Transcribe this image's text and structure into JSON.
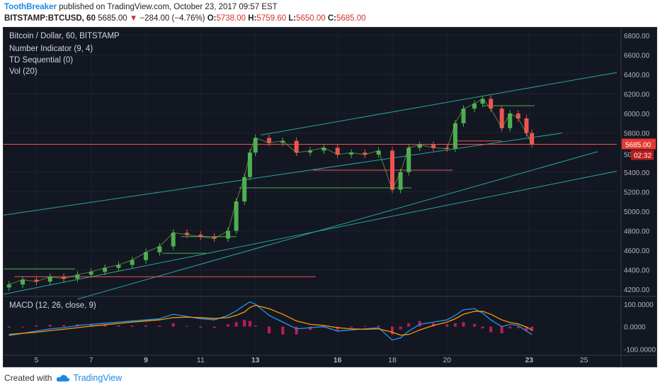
{
  "header": {
    "author": "ToothBreaker",
    "published": "published on TradingView.com, October 23, 2017 09:57 EST",
    "symbol": "BITSTAMP:BTCUSD, 60",
    "last": "5685.00",
    "change": "−284.00 (−4.76%)",
    "open_label": "O:",
    "open": "5738.00",
    "high_label": "H:",
    "high": "5759.60",
    "low_label": "L:",
    "low": "5650.00",
    "close_label": "C:",
    "close": "5685.00"
  },
  "legend": {
    "title": "Bitcoin / Dollar, 60, BITSTAMP",
    "indicator1": "Number Indicator (9, 4)",
    "indicator2": "TD Sequential (0)",
    "indicator3": "Vol (20)",
    "macd": "MACD (12, 26, close, 9)"
  },
  "price_tag": {
    "value": "5685.00",
    "countdown": "02:32",
    "partial": "50"
  },
  "footer": {
    "created": "Created with",
    "brand": "TradingView"
  },
  "colors": {
    "up": "#4caf50",
    "down": "#ef5350",
    "trend": "#26a69a",
    "macd": "#2196f3",
    "signal": "#ff9800",
    "hist": "#e91e63",
    "bg": "#131722"
  },
  "chart_data": {
    "type": "line",
    "x_ticks": [
      "5",
      "7",
      "9",
      "11",
      "13",
      "16",
      "18",
      "20",
      "23",
      "25"
    ],
    "x_ticks_bold": [
      "9",
      "13",
      "16",
      "23"
    ],
    "price_axis": {
      "ticks": [
        "6800.00",
        "6600.00",
        "6400.00",
        "6200.00",
        "6000.00",
        "5800.00",
        "5400.00",
        "5200.00",
        "5000.00",
        "4800.00",
        "4600.00",
        "4400.00",
        "4200.00"
      ],
      "ylim": [
        4150,
        6850
      ]
    },
    "macd_axis": {
      "ticks": [
        "100.0000",
        "0.0000",
        "-100.0000"
      ],
      "ylim": [
        -115,
        125
      ]
    },
    "days": [
      4,
      4.5,
      5,
      5.5,
      6,
      6.5,
      7,
      7.5,
      8,
      8.5,
      9,
      9.5,
      10,
      10.5,
      11,
      11.5,
      12,
      12.3,
      12.6,
      12.8,
      13,
      13.5,
      14,
      14.5,
      15,
      15.5,
      16,
      16.5,
      17,
      17.5,
      18,
      18.3,
      18.6,
      19,
      19.5,
      20,
      20.3,
      20.6,
      21,
      21.3,
      21.6,
      22,
      22.3,
      22.6,
      22.9,
      23.1
    ],
    "close": [
      4250,
      4300,
      4280,
      4330,
      4310,
      4350,
      4380,
      4420,
      4450,
      4500,
      4580,
      4640,
      4780,
      4760,
      4740,
      4720,
      4800,
      5100,
      5350,
      5600,
      5750,
      5700,
      5720,
      5600,
      5620,
      5650,
      5580,
      5600,
      5580,
      5620,
      5220,
      5400,
      5650,
      5680,
      5650,
      5640,
      5900,
      6050,
      6100,
      6150,
      6050,
      5850,
      6000,
      5950,
      5800,
      5685
    ],
    "macd": [
      -40,
      -30,
      -20,
      -10,
      -5,
      5,
      10,
      15,
      20,
      25,
      30,
      35,
      55,
      45,
      35,
      30,
      50,
      70,
      95,
      110,
      100,
      50,
      20,
      -10,
      -5,
      0,
      -20,
      -15,
      -10,
      -5,
      -60,
      -50,
      -20,
      10,
      20,
      30,
      50,
      75,
      80,
      60,
      30,
      0,
      10,
      5,
      -20,
      -35
    ],
    "signal": [
      -35,
      -30,
      -25,
      -18,
      -12,
      -5,
      2,
      8,
      14,
      20,
      25,
      30,
      40,
      42,
      40,
      36,
      40,
      50,
      65,
      85,
      95,
      80,
      55,
      25,
      10,
      5,
      -5,
      -10,
      -12,
      -10,
      -25,
      -38,
      -35,
      -15,
      5,
      20,
      35,
      55,
      68,
      68,
      55,
      30,
      18,
      12,
      -2,
      -15
    ]
  }
}
